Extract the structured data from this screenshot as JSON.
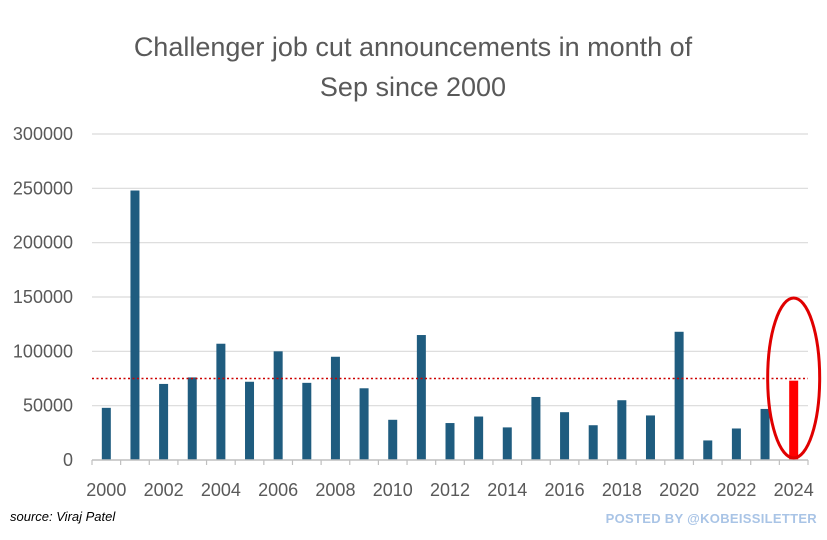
{
  "colors": {
    "bar": "#1f5c7f",
    "highlight_bar": "#ff0000",
    "average_line": "#cc0000",
    "highlight_ellipse": "#e00000",
    "grid": "#d9d9d9",
    "axis": "#bfbfbf",
    "credit": "#a9c4e6"
  },
  "chart_data": {
    "type": "bar",
    "title_lines": [
      "Challenger job cut announcements in month of",
      "Sep since 2000"
    ],
    "categories": [
      "2000",
      "2001",
      "2002",
      "2003",
      "2004",
      "2005",
      "2006",
      "2007",
      "2008",
      "2009",
      "2010",
      "2011",
      "2012",
      "2013",
      "2014",
      "2015",
      "2016",
      "2017",
      "2018",
      "2019",
      "2020",
      "2021",
      "2022",
      "2023",
      "2024"
    ],
    "values": [
      48000,
      248000,
      70000,
      76000,
      107000,
      72000,
      100000,
      71000,
      95000,
      66000,
      37000,
      115000,
      34000,
      40000,
      30000,
      58000,
      44000,
      32000,
      55000,
      41000,
      118000,
      18000,
      29000,
      47000,
      73000
    ],
    "x_tick_labels": [
      "2000",
      "2002",
      "2004",
      "2006",
      "2008",
      "2010",
      "2012",
      "2014",
      "2016",
      "2018",
      "2020",
      "2022",
      "2024"
    ],
    "y_tick_labels": [
      "0",
      "50000",
      "100000",
      "150000",
      "200000",
      "250000",
      "300000"
    ],
    "ylim": [
      0,
      300000
    ],
    "average_line_value": 75000,
    "highlighted_category": "2024",
    "grid": true,
    "legend": "none",
    "xlabel": "",
    "ylabel": ""
  },
  "footer": {
    "source": "source: Viraj Patel",
    "credit": "POSTED BY @KOBEISSILETTER"
  }
}
